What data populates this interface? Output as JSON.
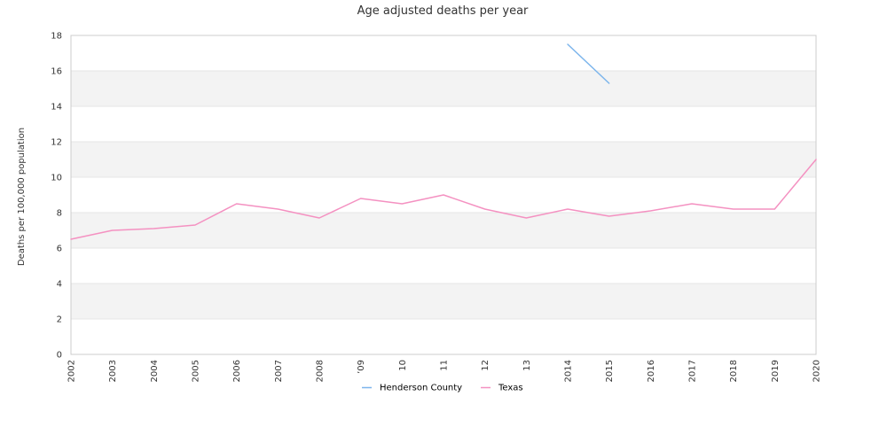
{
  "chart_data": {
    "type": "line",
    "title": "Age adjusted deaths per year",
    "ylabel": "Deaths per 100,000 population",
    "xlabel": "",
    "x": [
      "2002",
      "2003",
      "2004",
      "2005",
      "2006",
      "2007",
      "2008",
      "2009",
      "2010",
      "2011",
      "2012",
      "2013",
      "2014",
      "2015",
      "2016",
      "2017",
      "2018",
      "2019",
      "2020"
    ],
    "x_tick_labels": [
      "2002",
      "2003",
      "2004",
      "2005",
      "2006",
      "2007",
      "2008",
      "’09",
      "10",
      "11",
      "12",
      "13",
      "2014",
      "2015",
      "2016",
      "2017",
      "2018",
      "2019",
      "2020"
    ],
    "ylim": [
      0,
      18
    ],
    "yticks": [
      0,
      2,
      4,
      6,
      8,
      10,
      12,
      14,
      16,
      18
    ],
    "grid": "alternating horizontal bands",
    "legend_position": "bottom",
    "series": [
      {
        "name": "Henderson County",
        "color": "#7cb5ec",
        "values": [
          null,
          null,
          null,
          null,
          null,
          null,
          null,
          null,
          null,
          null,
          null,
          null,
          17.5,
          15.3,
          null,
          null,
          null,
          null,
          null
        ]
      },
      {
        "name": "Texas",
        "color": "#f491c1",
        "values": [
          6.5,
          7.0,
          7.1,
          7.3,
          8.5,
          8.2,
          7.7,
          8.8,
          8.5,
          9.0,
          8.2,
          7.7,
          8.2,
          7.8,
          8.1,
          8.5,
          8.2,
          8.2,
          11.0
        ]
      }
    ]
  }
}
